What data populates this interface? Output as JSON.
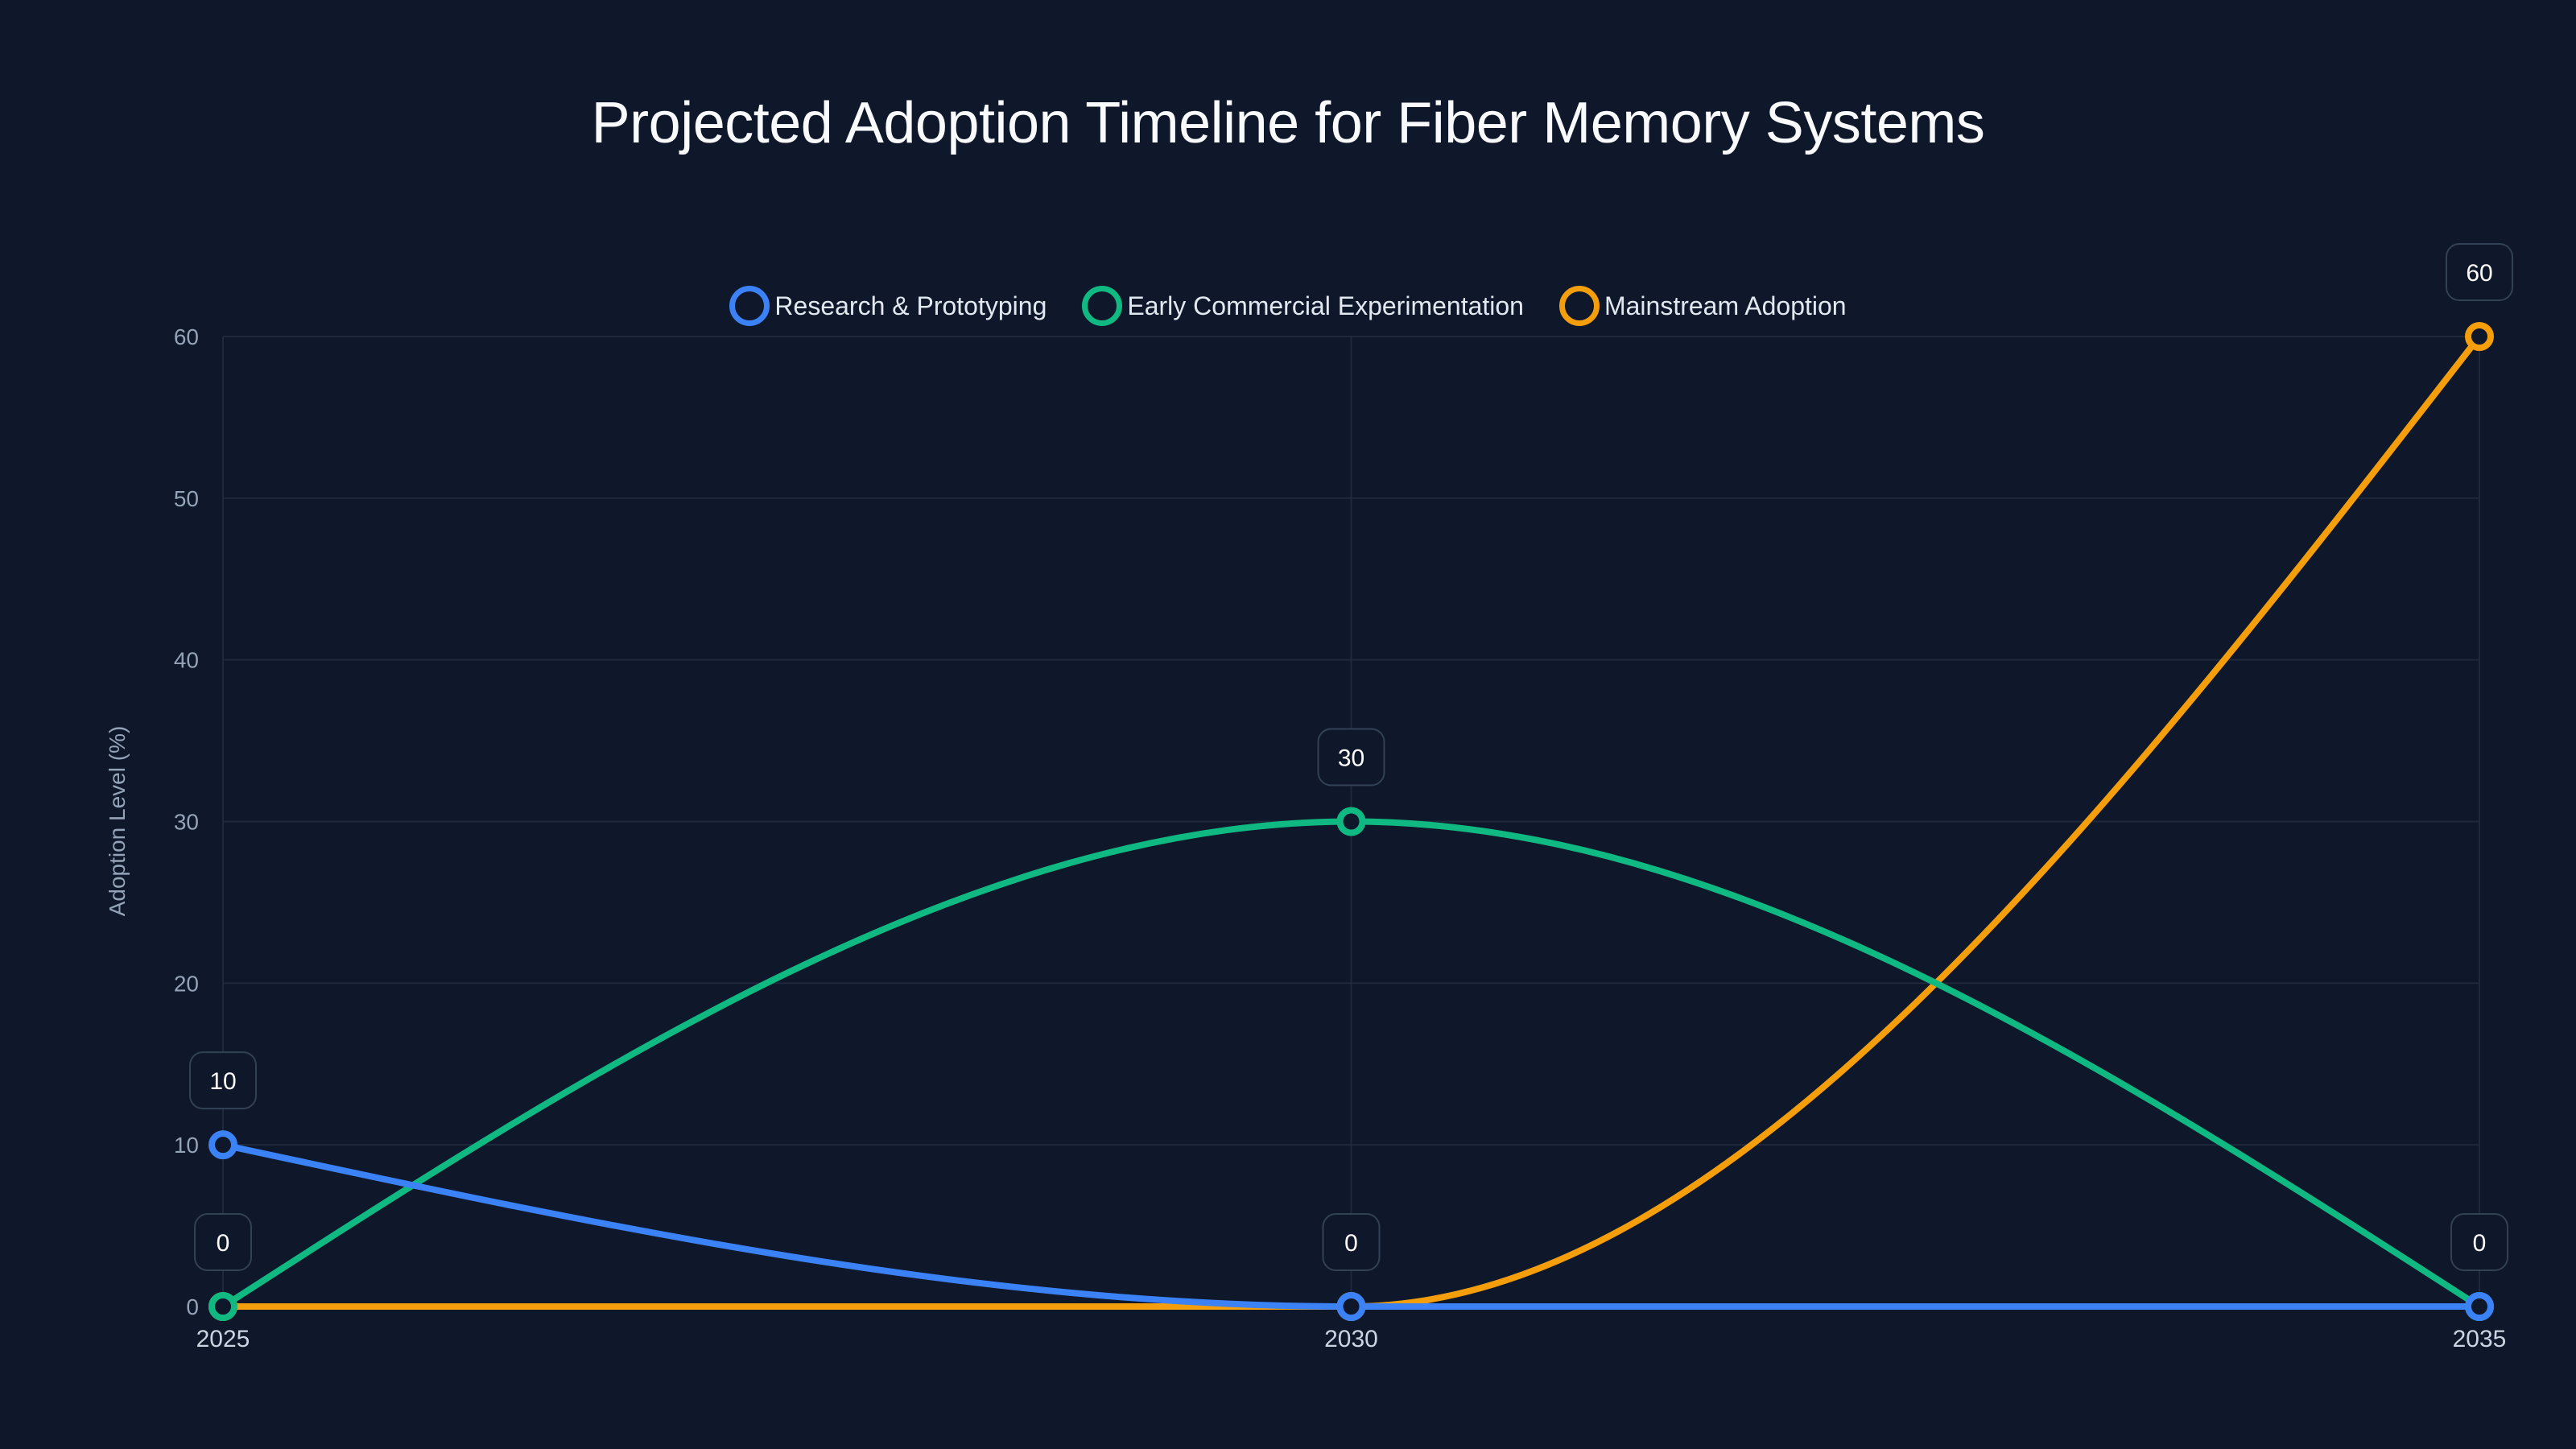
{
  "chart_data": {
    "type": "line",
    "title": "Projected Adoption Timeline for Fiber Memory Systems",
    "xlabel": "",
    "ylabel": "Adoption Level (%)",
    "categories": [
      "2025",
      "2030",
      "2035"
    ],
    "series": [
      {
        "name": "Research & Prototyping",
        "color": "#3b82f6",
        "values": [
          10,
          0,
          0
        ]
      },
      {
        "name": "Early Commercial Experimentation",
        "color": "#10b981",
        "values": [
          0,
          30,
          0
        ]
      },
      {
        "name": "Mainstream Adoption",
        "color": "#f59e0b",
        "values": [
          0,
          0,
          60
        ]
      }
    ],
    "ylim": [
      0,
      60
    ],
    "yticks": [
      0,
      10,
      20,
      30,
      40,
      50,
      60
    ],
    "grid": true,
    "legend_position": "top",
    "interpolation": "monotone",
    "data_labels": [
      {
        "series": "Research & Prototyping",
        "x": "2025",
        "text": "10"
      },
      {
        "series": "Early Commercial Experimentation",
        "x": "2025",
        "text": "0"
      },
      {
        "series": "Early Commercial Experimentation",
        "x": "2030",
        "text": "30"
      },
      {
        "series": "Research & Prototyping",
        "x": "2030",
        "text": "0"
      },
      {
        "series": "Mainstream Adoption",
        "x": "2035",
        "text": "60"
      },
      {
        "series": "Research & Prototyping",
        "x": "2035",
        "text": "0"
      }
    ]
  },
  "theme": {
    "background": "#0f172a",
    "grid": "#1e293b",
    "label_border": "#334155"
  }
}
